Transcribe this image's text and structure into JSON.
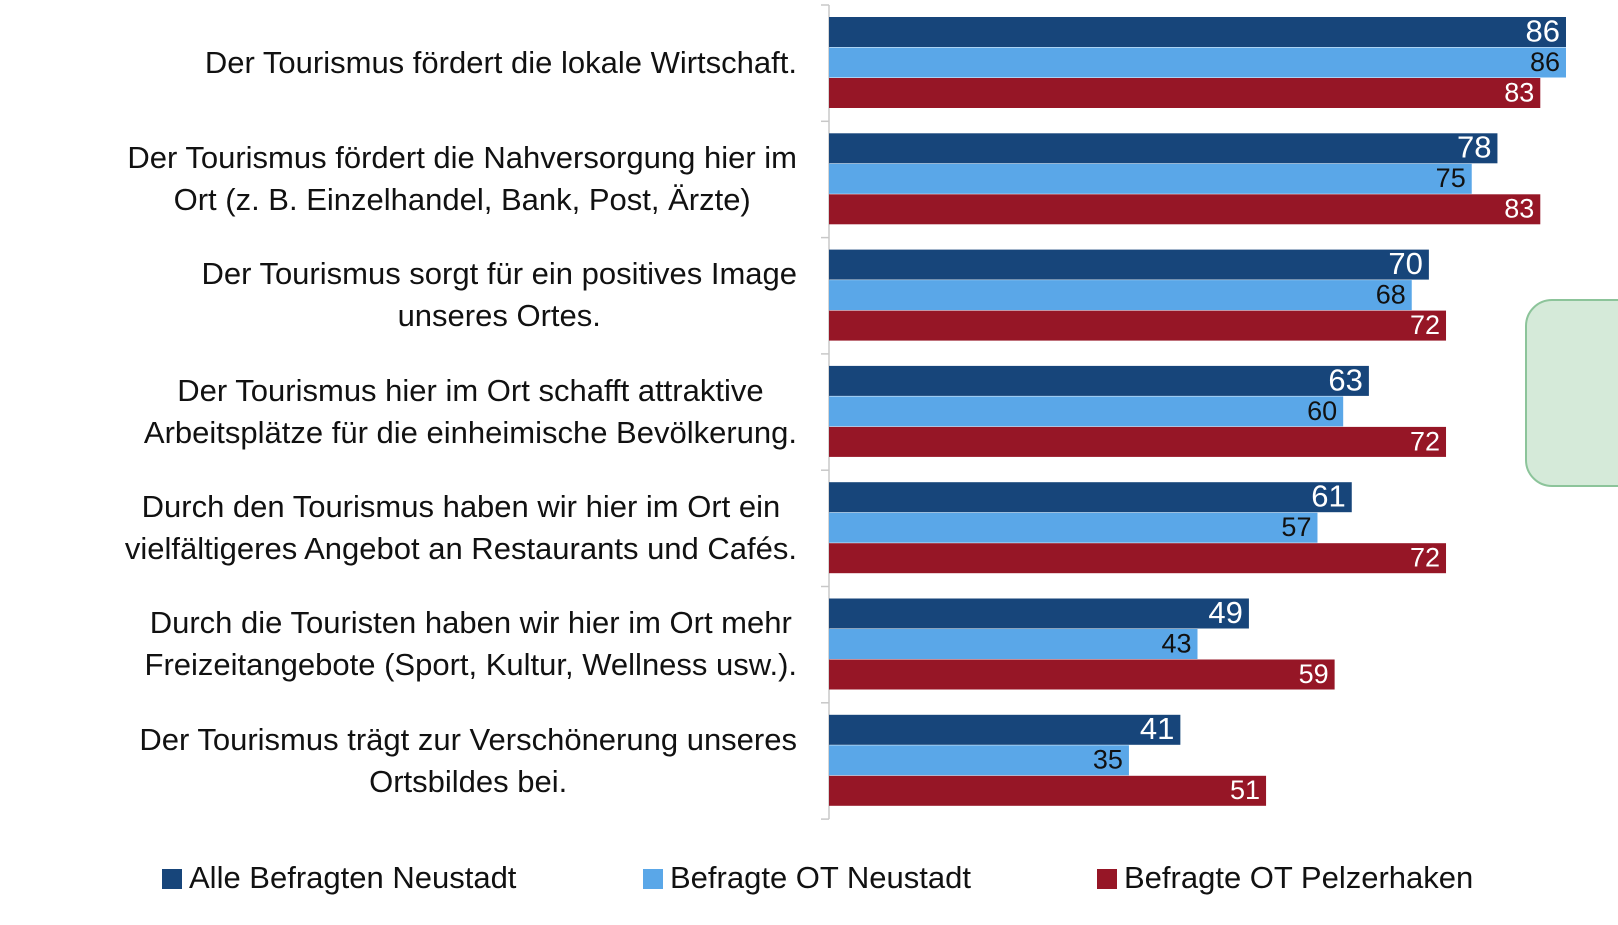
{
  "chart_data": {
    "type": "hbar",
    "categories": [
      "Der Tourismus fördert die lokale Wirtschaft.",
      "Der Tourismus fördert die Nahversorgung hier im\nOrt (z. B. Einzelhandel, Bank, Post, Ärzte)",
      "Der Tourismus sorgt für ein positives Image\nunseres Ortes.",
      "Der Tourismus hier im Ort schafft attraktive\nArbeitsplätze für die einheimische Bevölkerung.",
      "Durch den Tourismus haben wir hier im Ort ein\nvielfältigeres Angebot an Restaurants und Cafés.",
      "Durch die Touristen haben wir hier im Ort mehr\nFreizeitangebote (Sport, Kultur, Wellness usw.).",
      "Der Tourismus trägt zur Verschönerung unseres\nOrtsbildes bei."
    ],
    "series": [
      {
        "name": "Alle Befragten Neustadt",
        "color": "#17457a",
        "values": [
          86,
          78,
          70,
          63,
          61,
          49,
          41
        ]
      },
      {
        "name": "Befragte OT Neustadt",
        "color": "#5aa7e8",
        "values": [
          86,
          75,
          68,
          60,
          57,
          43,
          35
        ]
      },
      {
        "name": "Befragte OT Pelzerhaken",
        "color": "#961626",
        "values": [
          83,
          83,
          72,
          72,
          72,
          59,
          51
        ]
      }
    ],
    "legend": "bottom"
  }
}
